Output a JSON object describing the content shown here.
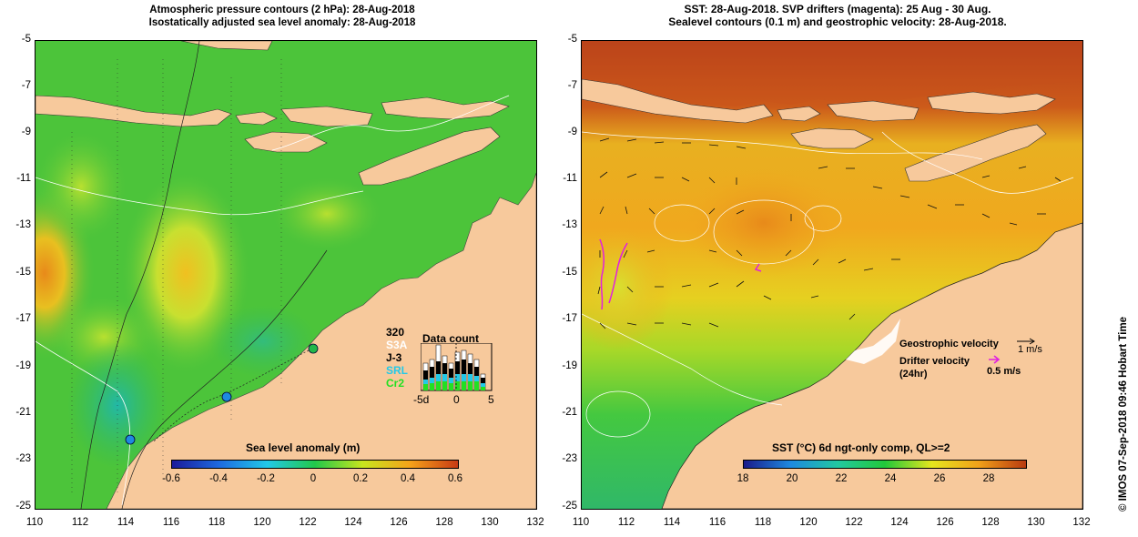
{
  "left": {
    "title_line1": "Atmospheric pressure contours (2 hPa): 28-Aug-2018",
    "title_line2": "Isostatically adjusted sea level anomaly: 28-Aug-2018",
    "colorbar": {
      "title": "Sea level anomaly (m)",
      "ticks": [
        "-0.6",
        "-0.4",
        "-0.2",
        "0",
        "0.2",
        "0.4",
        "0.6"
      ],
      "colors": [
        "#1a1a9a",
        "#1e6be0",
        "#22c9e8",
        "#22c84a",
        "#c8e61e",
        "#f5a21a",
        "#c83a14"
      ]
    },
    "data_count": {
      "title": "Data count",
      "max_label": "320",
      "satellites": [
        {
          "name": "S3A",
          "color": "#ffffff"
        },
        {
          "name": "J-3",
          "color": "#000000"
        },
        {
          "name": "SRL",
          "color": "#22c9e8"
        },
        {
          "name": "Cr2",
          "color": "#22e022"
        }
      ],
      "x_ticks": [
        "-5d",
        "0",
        "5"
      ]
    }
  },
  "right": {
    "title_line1": "SST: 28-Aug-2018. SVP drifters (magenta): 25 Aug - 30 Aug.",
    "title_line2": "Sealevel contours (0.1 m) and geostrophic velocity: 28-Aug-2018.",
    "colorbar": {
      "title": "SST (°C) 6d ngt-only comp, QL>=2",
      "ticks": [
        "18",
        "20",
        "22",
        "24",
        "26",
        "28"
      ],
      "colors": [
        "#1a1a8a",
        "#1e8ae0",
        "#22c8a0",
        "#22c83a",
        "#e6e61e",
        "#f0a01a",
        "#b83a10"
      ]
    },
    "legend": {
      "geostrophic_label": "Geostrophic velocity",
      "geostrophic_scale": "1 m/s",
      "drifter_label": "Drifter velocity",
      "drifter_label2": "(24hr)",
      "drifter_scale": "0.5 m/s"
    }
  },
  "axes": {
    "y_ticks": [
      "-5",
      "-7",
      "-9",
      "-11",
      "-13",
      "-15",
      "-17",
      "-19",
      "-21",
      "-23",
      "-25"
    ],
    "x_ticks": [
      "110",
      "112",
      "114",
      "116",
      "118",
      "120",
      "122",
      "124",
      "126",
      "128",
      "130",
      "132"
    ]
  },
  "credit": "© IMOS 07-Sep-2018 09:46 Hobart Time",
  "colors": {
    "land": "#f7c99c",
    "island_dark": "#f0b884"
  }
}
